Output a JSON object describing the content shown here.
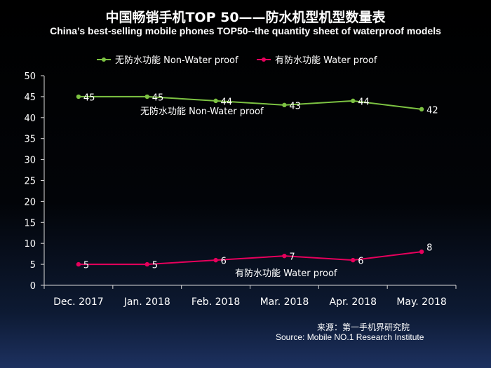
{
  "header": {
    "title": "中国畅销手机TOP 50——防水机型机型数量表",
    "subtitle": "China’s best-selling mobile phones TOP50--the quantity sheet of waterproof models"
  },
  "source": {
    "line1": "来源：第一手机界研究院",
    "line2": "Source: Mobile NO.1 Research Institute"
  },
  "colors": {
    "non_water": "#7cc242",
    "water": "#e6005c",
    "axis": "#d9d9d9"
  },
  "chart_data": {
    "type": "line",
    "title": "中国畅销手机TOP 50——防水机型机型数量表",
    "subtitle": "China’s best-selling mobile phones TOP50--the quantity sheet of waterproof models",
    "xlabel": "",
    "ylabel": "",
    "categories": [
      "Dec. 2017",
      "Jan. 2018",
      "Feb. 2018",
      "Mar. 2018",
      "Apr. 2018",
      "May. 2018"
    ],
    "yticks": [
      "0",
      "5",
      "10",
      "15",
      "20",
      "25",
      "30",
      "35",
      "40",
      "45",
      "50"
    ],
    "ylim": [
      0,
      50
    ],
    "grid": false,
    "legend": "top",
    "series": [
      {
        "name": "无防水功能  Non-Water proof",
        "annotation": "无防水功能  Non-Water proof",
        "values": [
          45,
          45,
          44,
          43,
          44,
          42
        ],
        "labels": [
          "45",
          "45",
          "44",
          "43",
          "44",
          "42"
        ]
      },
      {
        "name": "有防水功能  Water proof",
        "annotation": "有防水功能   Water proof",
        "values": [
          5,
          5,
          6,
          7,
          6,
          8
        ],
        "labels": [
          "5",
          "5",
          "6",
          "7",
          "6",
          "8"
        ]
      }
    ]
  }
}
